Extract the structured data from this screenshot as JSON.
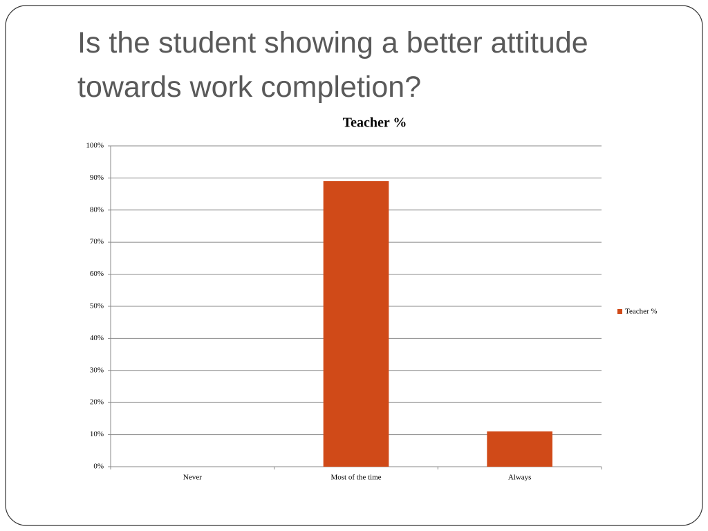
{
  "slide_title": "Is the student showing a better attitude towards work completion?",
  "chart_data": {
    "type": "bar",
    "title": "Teacher %",
    "categories": [
      "Never",
      "Most of the time",
      "Always"
    ],
    "series": [
      {
        "name": "Teacher %",
        "color": "#d04a18",
        "values": [
          0,
          89,
          11
        ]
      }
    ],
    "ylim": [
      0,
      100
    ],
    "yticks": [
      {
        "value": 0,
        "label": "0%"
      },
      {
        "value": 10,
        "label": "10%"
      },
      {
        "value": 20,
        "label": "20%"
      },
      {
        "value": 30,
        "label": "30%"
      },
      {
        "value": 40,
        "label": "40%"
      },
      {
        "value": 50,
        "label": "50%"
      },
      {
        "value": 60,
        "label": "60%"
      },
      {
        "value": 70,
        "label": "70%"
      },
      {
        "value": 80,
        "label": "80%"
      },
      {
        "value": 90,
        "label": "90%"
      },
      {
        "value": 100,
        "label": "100%"
      }
    ],
    "grid": true,
    "legend": "right"
  }
}
